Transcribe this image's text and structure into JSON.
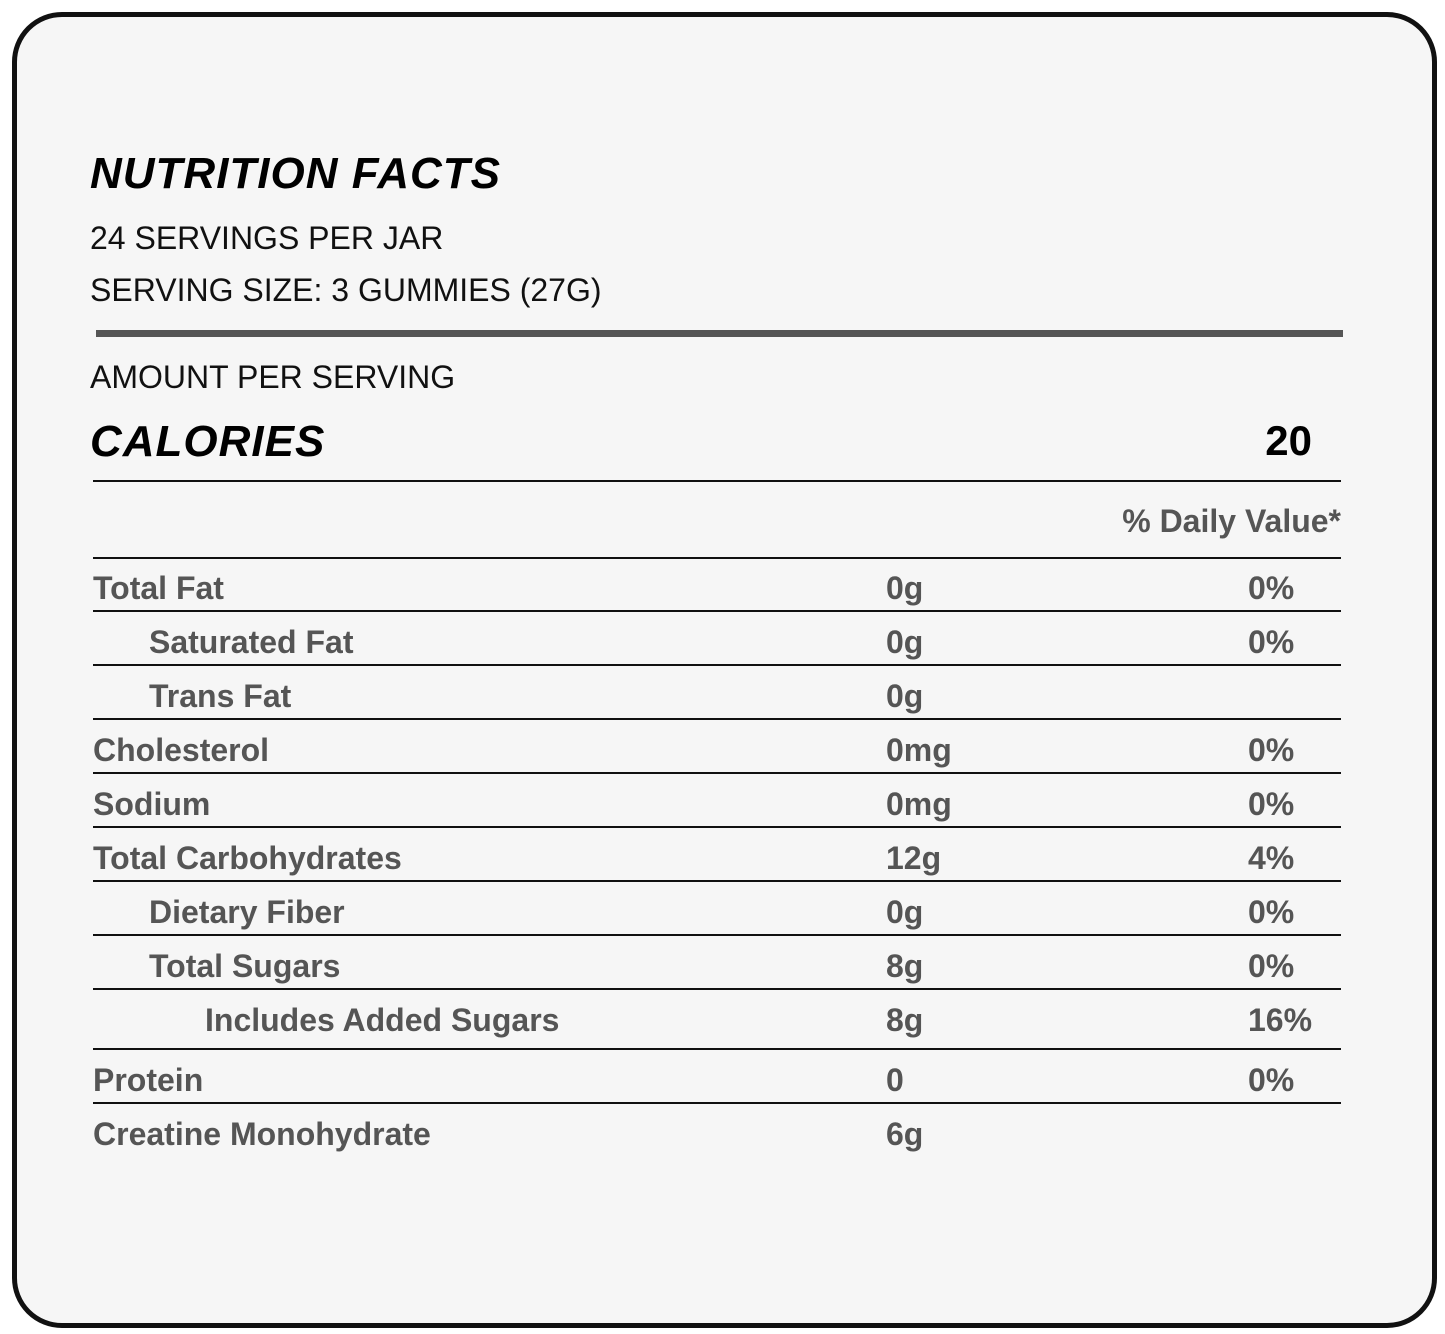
{
  "header": {
    "title": "NUTRITION FACTS",
    "servings": "24 SERVINGS PER JAR",
    "serving_size": "SERVING SIZE: 3 GUMMIES (27G)"
  },
  "amount_label": "AMOUNT PER SERVING",
  "calories": {
    "label": "CALORIES",
    "value": "20"
  },
  "daily_value_header": "% Daily Value*",
  "rows": [
    {
      "name": "Total Fat",
      "amount": "0g",
      "dv": "0%"
    },
    {
      "name": "Saturated Fat",
      "amount": "0g",
      "dv": "0%"
    },
    {
      "name": "Trans Fat",
      "amount": "0g"
    },
    {
      "name": "Cholesterol",
      "amount": "0mg",
      "dv": "0%"
    },
    {
      "name": "Sodium",
      "amount": "0mg",
      "dv": "0%"
    },
    {
      "name": "Total Carbohydrates",
      "amount": "12g",
      "dv": "4%"
    },
    {
      "name": "Dietary Fiber",
      "amount": "0g",
      "dv": "0%"
    },
    {
      "name": "Total Sugars",
      "amount": "8g",
      "dv": "0%"
    },
    {
      "name": "Includes Added Sugars",
      "amount": "8g",
      "dv": "16%"
    },
    {
      "name": "Protein",
      "amount": "0",
      "dv": "0%"
    },
    {
      "name": "Creatine Monohydrate",
      "amount": "6g"
    }
  ]
}
